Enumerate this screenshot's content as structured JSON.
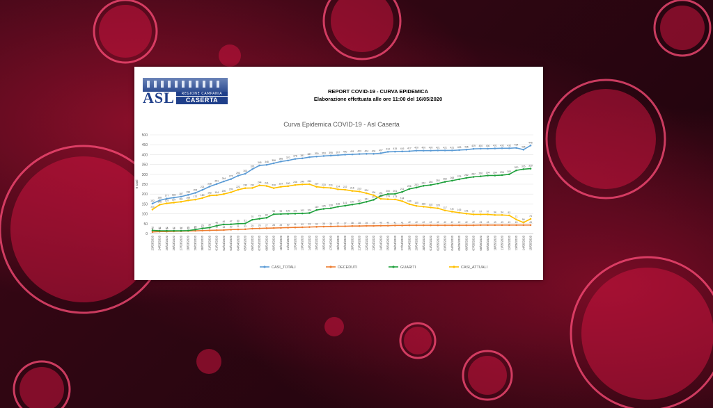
{
  "report": {
    "title": "REPORT COVID-19 - CURVA EPIDEMICA",
    "subtitle": "Elaborazione effettuata alle ore 11:00 del 16/05/2020",
    "logo": {
      "main": "ASL",
      "region": "REGIONE CAMPANIA",
      "city": "CASERTA"
    }
  },
  "colors": {
    "casi_totali": "#5b9bd5",
    "deceduti": "#ed7d31",
    "guariti": "#1fa03c",
    "casi_attuali": "#ffc000"
  },
  "chart_data": {
    "type": "line",
    "title": "Curva Epidemica COVID-19 - Asl Caserta",
    "ylabel": "n casi",
    "ylim": [
      0,
      500
    ],
    "yticks": [
      0,
      50,
      100,
      150,
      200,
      250,
      300,
      350,
      400,
      450,
      500
    ],
    "grid": true,
    "legend_position": "bottom",
    "x": [
      "23/03/2020",
      "24/03/2020",
      "25/03/2020",
      "26/03/2020",
      "27/03/2020",
      "28/03/2020",
      "29/03/2020",
      "30/03/2020",
      "31/03/2020",
      "01/04/2020",
      "02/04/2020",
      "03/04/2020",
      "04/04/2020",
      "05/04/2020",
      "06/04/2020",
      "07/04/2020",
      "08/04/2020",
      "09/04/2020",
      "10/04/2020",
      "11/04/2020",
      "12/04/2020",
      "13/04/2020",
      "14/04/2020",
      "15/04/2020",
      "16/04/2020",
      "17/04/2020",
      "18/04/2020",
      "19/04/2020",
      "20/04/2020",
      "21/04/2020",
      "22/04/2020",
      "23/04/2020",
      "24/04/2020",
      "25/04/2020",
      "26/04/2020",
      "27/04/2020",
      "28/04/2020",
      "29/04/2020",
      "30/04/2020",
      "01/05/2020",
      "02/05/2020",
      "03/05/2020",
      "04/05/2020",
      "05/05/2020",
      "06/05/2020",
      "07/05/2020",
      "08/05/2020",
      "09/05/2020",
      "10/05/2020",
      "11/05/2020",
      "12/05/2020",
      "13/05/2020",
      "14/05/2020",
      "15/05/2020"
    ],
    "x_tick_labels": [
      "23/03/2020",
      "24/03/2020",
      "25/03/2020",
      "26/03/2020",
      "27/03/2020",
      "28/03/2020",
      "29/03/2020",
      "30/03/2020",
      "31/03/2020",
      "01/04/2020",
      "02/04/2020",
      "03/04/2020",
      "04/04/2020",
      "05/04/2020",
      "06/04/2020",
      "07/04/2020",
      "08/04/2020",
      "09/04/2020",
      "10/04/2020",
      "11/04/2020",
      "12/04/2020",
      "13/04/2020",
      "14/04/2020",
      "15/04/2020",
      "16/04/2020",
      "17/04/2020",
      "18/04/2020",
      "19/04/2020",
      "20/04/2020",
      "21/04/2020",
      "22/04/2020",
      "23/04/2020",
      "24/04/2020",
      "25/04/2020",
      "26/04/2020",
      "27/04/2020",
      "28/04/2020",
      "29/04/2020",
      "30/04/2020",
      "01/05/2020",
      "02/05/2020",
      "03/05/2020",
      "04/05/2020",
      "05/05/2020",
      "06/05/2020",
      "07/05/2020",
      "08/05/2020",
      "09/05/2020",
      "10/05/2020",
      "11/05/2020",
      "12/05/2020",
      "13/05/2020",
      "14/05/2020",
      "15/05/2020"
    ],
    "series": [
      {
        "name": "CASI_TOTALI",
        "color_key": "casi_totali",
        "values": [
          152,
          168,
          177,
          182,
          187,
          196,
          206,
          221,
          238,
          251,
          264,
          276,
          293,
          303,
          326,
          345,
          348,
          356,
          365,
          370,
          378,
          381,
          387,
          390,
          393,
          395,
          397,
          400,
          401,
          403,
          404,
          404,
          407,
          414,
          415,
          416,
          417,
          420,
          420,
          420,
          421,
          421,
          421,
          423,
          425,
          429,
          430,
          430,
          431,
          432,
          432,
          434,
          425,
          446
        ]
      },
      {
        "name": "DECEDUTI",
        "color_key": "deceduti",
        "values": [
          8,
          10,
          10,
          11,
          12,
          13,
          14,
          15,
          16,
          17,
          18,
          20,
          21,
          22,
          25,
          26,
          27,
          28,
          29,
          30,
          31,
          32,
          33,
          34,
          35,
          36,
          37,
          37,
          38,
          38,
          39,
          39,
          40,
          40,
          41,
          41,
          42,
          42,
          42,
          42,
          42,
          42,
          42,
          42,
          42,
          42,
          43,
          43,
          43,
          43,
          43,
          43,
          43,
          43
        ]
      },
      {
        "name": "GUARITI",
        "color_key": "guariti",
        "values": [
          16,
          14,
          14,
          14,
          14,
          15,
          20,
          26,
          30,
          40,
          46,
          47,
          50,
          51,
          70,
          75,
          80,
          98,
          99,
          100,
          101,
          102,
          104,
          119,
          125,
          128,
          136,
          141,
          147,
          152,
          161,
          171,
          191,
          200,
          201,
          211,
          226,
          233,
          242,
          246,
          253,
          262,
          268,
          275,
          282,
          287,
          290,
          294,
          294,
          296,
          300,
          320,
          326,
          329
        ]
      },
      {
        "name": "CASI_ATTUALI",
        "color_key": "casi_attuali",
        "values": [
          122,
          146,
          153,
          157,
          161,
          168,
          172,
          180,
          192,
          194,
          200,
          209,
          222,
          230,
          231,
          244,
          241,
          230,
          237,
          240,
          246,
          249,
          250,
          237,
          233,
          231,
          224,
          222,
          216,
          213,
          204,
          194,
          176,
          174,
          173,
          164,
          149,
          140,
          136,
          132,
          128,
          117,
          111,
          106,
          101,
          97,
          97,
          97,
          94,
          94,
          92,
          71,
          56,
          74
        ]
      }
    ]
  }
}
